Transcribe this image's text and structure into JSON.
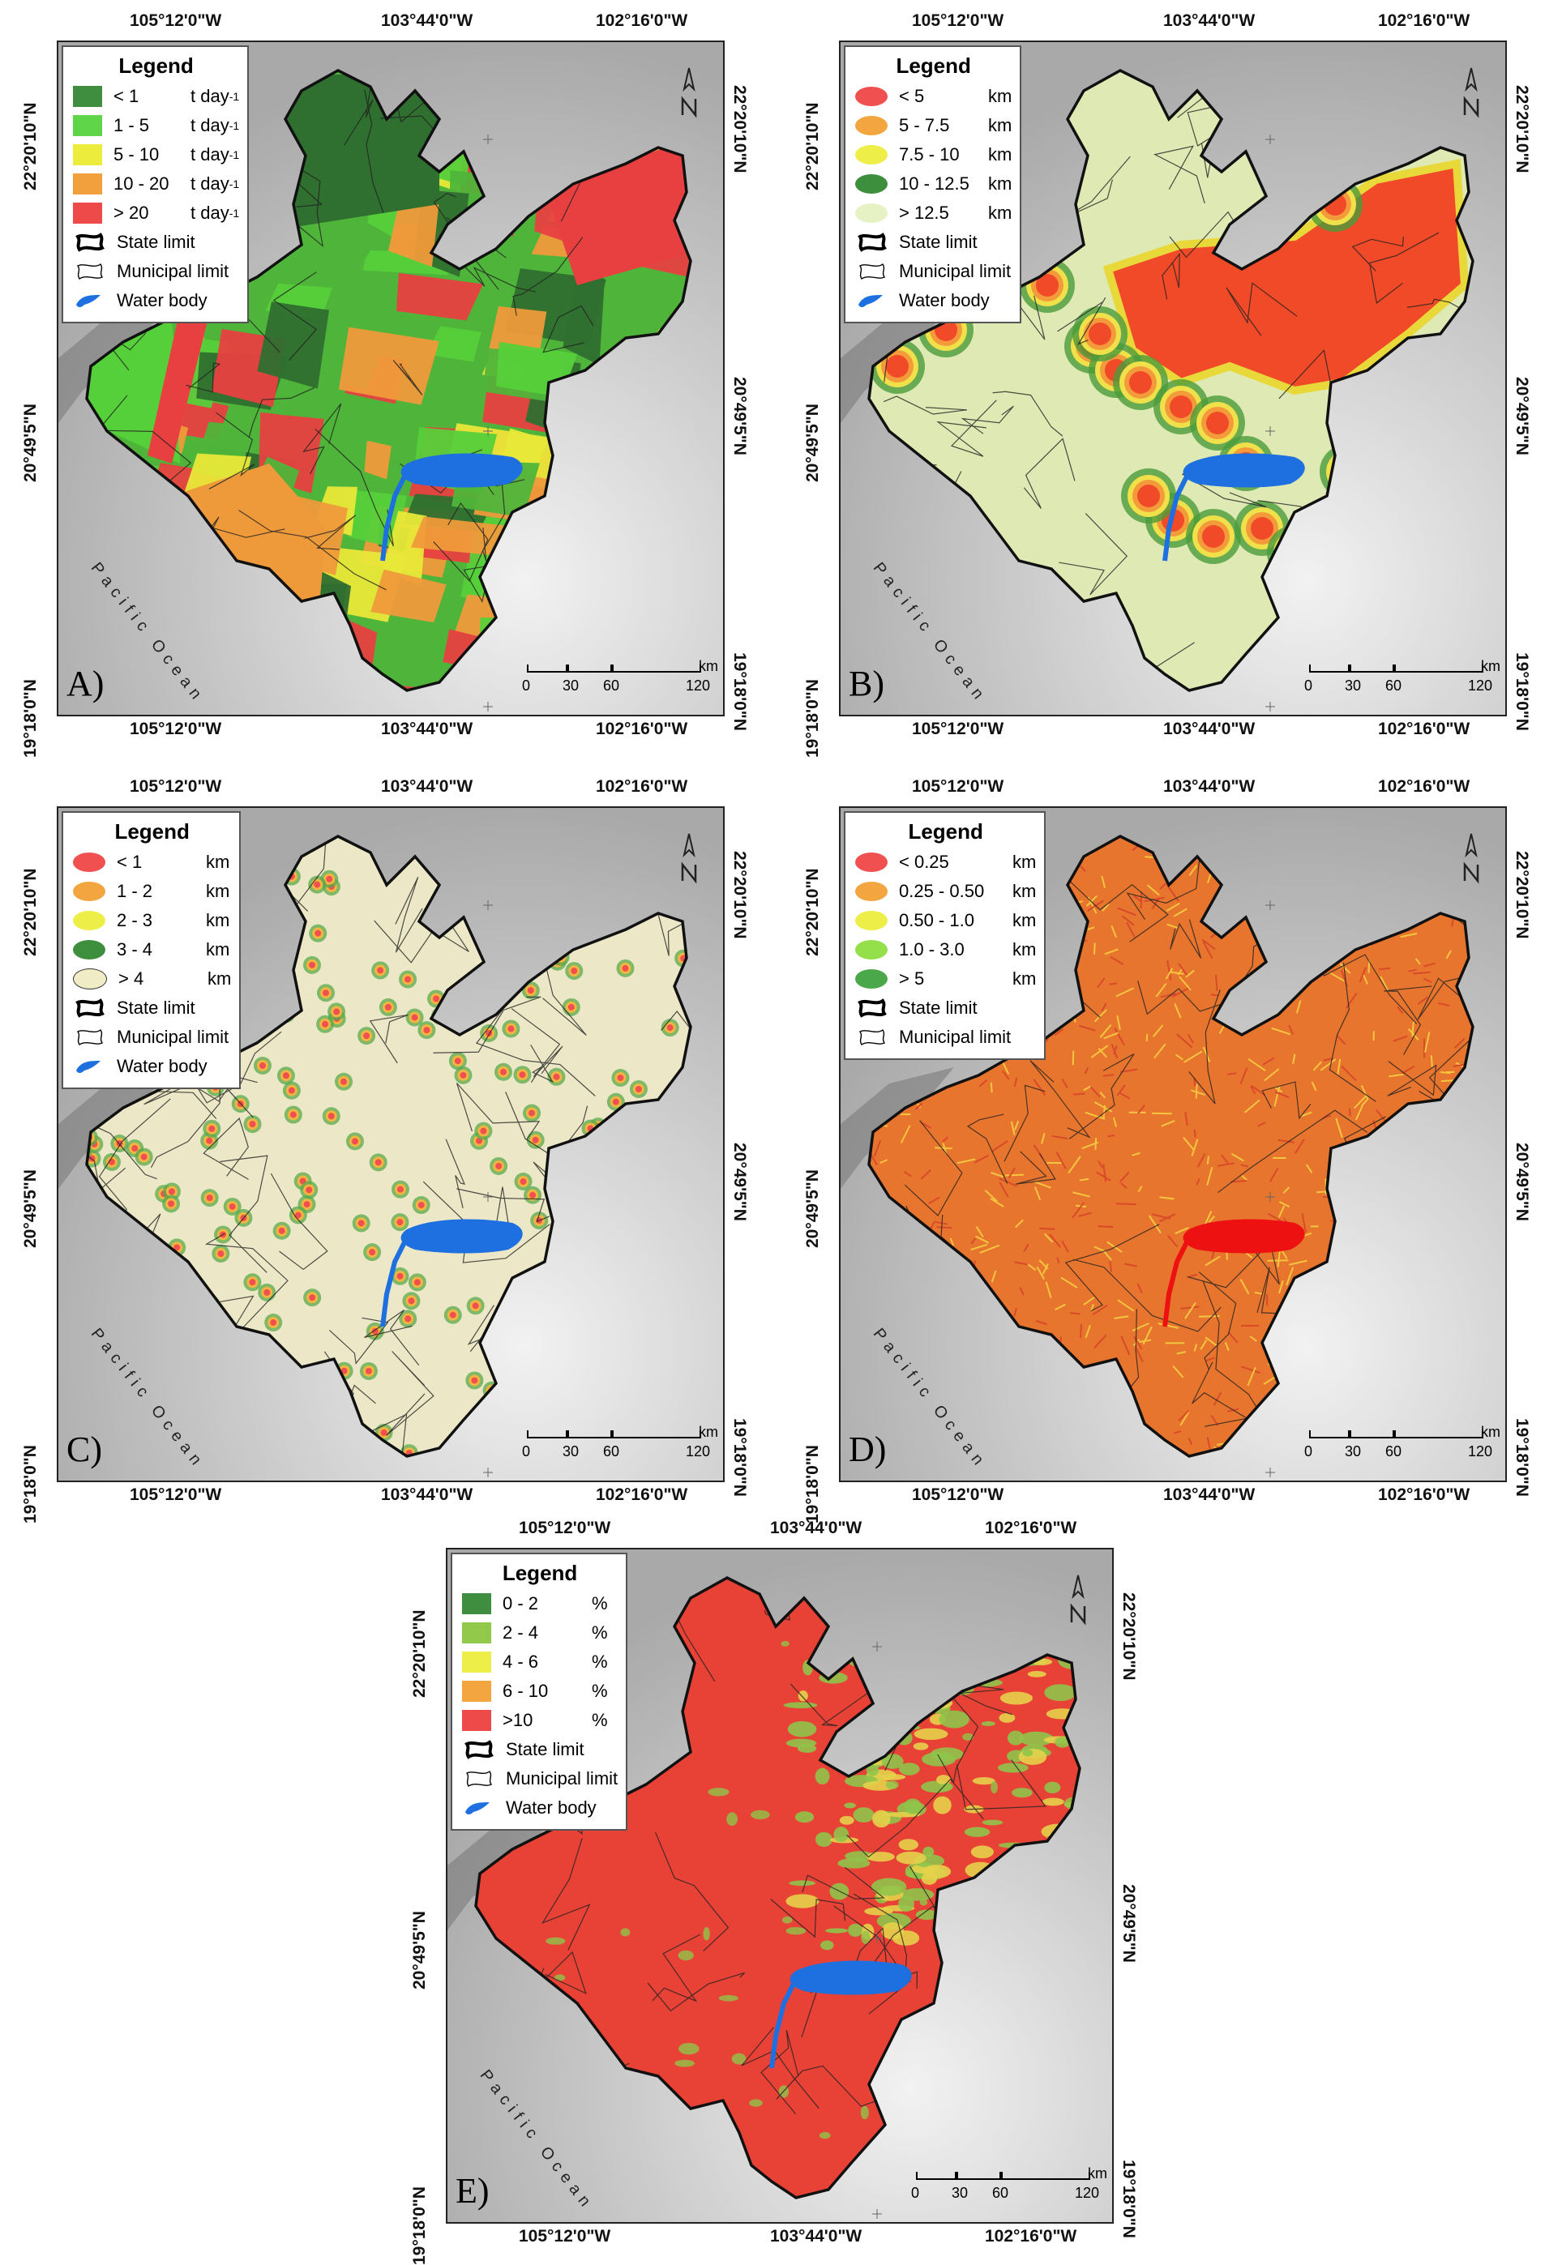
{
  "shared": {
    "top_coords": [
      "105°12'0\"W",
      "103°44'0\"W",
      "102°16'0\"W"
    ],
    "side_coords": [
      "22°20'10\"N",
      "20°49'5\"N",
      "19°18'0\"N"
    ],
    "ocean_label": "Pacific Ocean",
    "scale_unit": "km",
    "scale_ticks": [
      "0",
      "30",
      "60",
      "120"
    ],
    "legend_title": "Legend",
    "state_limit": "State limit",
    "municipal_limit": "Municipal limit",
    "water_body": "Water body"
  },
  "panels": [
    {
      "id": "A",
      "label": "A)",
      "legend": [
        {
          "range": "< 1",
          "unit": "t day",
          "sup": "-1",
          "color": "#3f8e3f"
        },
        {
          "range": "1 - 5",
          "unit": "t day",
          "sup": "-1",
          "color": "#5fd64a"
        },
        {
          "range": "5 - 10",
          "unit": "t day",
          "sup": "-1",
          "color": "#ecec3c"
        },
        {
          "range": "10 - 20",
          "unit": "t day",
          "sup": "-1",
          "color": "#f2a03e"
        },
        {
          "range": "> 20",
          "unit": "t day",
          "sup": "-1",
          "color": "#ef4a4a"
        }
      ]
    },
    {
      "id": "B",
      "label": "B)",
      "legend": [
        {
          "range": "< 5",
          "unit": "km",
          "color": "#f05050"
        },
        {
          "range": "5 - 7.5",
          "unit": "km",
          "color": "#f3a53f"
        },
        {
          "range": "7.5 - 10",
          "unit": "km",
          "color": "#eeee48"
        },
        {
          "range": "10 - 12.5",
          "unit": "km",
          "color": "#3d8e3d"
        },
        {
          "range": "> 12.5",
          "unit": "km",
          "color": "#e6f2c4"
        }
      ]
    },
    {
      "id": "C",
      "label": "C)",
      "legend": [
        {
          "range": "< 1",
          "unit": "km",
          "color": "#f05050"
        },
        {
          "range": "1 - 2",
          "unit": "km",
          "color": "#f3a53f"
        },
        {
          "range": "2 - 3",
          "unit": "km",
          "color": "#eeee48"
        },
        {
          "range": "3 - 4",
          "unit": "km",
          "color": "#3d8e3d"
        },
        {
          "range": "> 4",
          "unit": "km",
          "color": "#efecc6"
        }
      ]
    },
    {
      "id": "D",
      "label": "D)",
      "legend": [
        {
          "range": "< 0.25",
          "unit": "km",
          "color": "#f05050"
        },
        {
          "range": "0.25 - 0.50",
          "unit": "km",
          "color": "#f3a53f"
        },
        {
          "range": "0.50 - 1.0",
          "unit": "km",
          "color": "#eeee48"
        },
        {
          "range": "1.0 - 3.0",
          "unit": "km",
          "color": "#93e04a"
        },
        {
          "range": "> 5",
          "unit": "km",
          "color": "#4aa84a"
        }
      ]
    },
    {
      "id": "E",
      "label": "E)",
      "legend": [
        {
          "range": "0 - 2",
          "unit": "%",
          "color": "#3f8e3f"
        },
        {
          "range": "2 - 4",
          "unit": "%",
          "color": "#93c94a"
        },
        {
          "range": "4 - 6",
          "unit": "%",
          "color": "#eeee48"
        },
        {
          "range": "6 - 10",
          "unit": "%",
          "color": "#f3a53f"
        },
        {
          "range": ">10",
          "unit": "%",
          "color": "#ef4a4a"
        }
      ]
    }
  ],
  "colors": {
    "water": "#1e6fe0",
    "border": "#111111",
    "terrain": "#c9c9c9",
    "coast": "#5a5a5a",
    "fill_A": [
      "#2f6f2f",
      "#4fb53a",
      "#56d03a",
      "#e8e838",
      "#ef9a3a",
      "#e84040"
    ],
    "fill_B_base": "#dfe9b4",
    "fill_B_hot": "#f04a28",
    "fill_C_base": "#ece8c7",
    "fill_D": "#e8752e",
    "fill_E": "#e84236"
  }
}
